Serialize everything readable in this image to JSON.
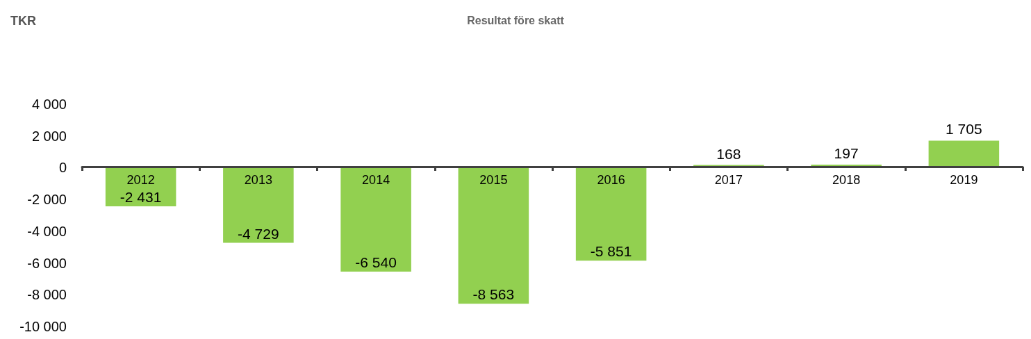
{
  "chart_data": {
    "type": "bar",
    "title": "Resultat före skatt",
    "annotations": [
      "TKR"
    ],
    "categories": [
      "2012",
      "2013",
      "2014",
      "2015",
      "2016",
      "2017",
      "2018",
      "2019"
    ],
    "values": [
      -2431,
      -4729,
      -6540,
      -8563,
      -5851,
      168,
      197,
      1705
    ],
    "value_labels": [
      "-2 431",
      "-4 729",
      "-6 540",
      "-8 563",
      "-5 851",
      "168",
      "197",
      "1 705"
    ],
    "color": "#92d050",
    "ylim": [
      -10000,
      4000
    ],
    "yticks": [
      {
        "value": -10000,
        "label": "-10 000"
      },
      {
        "value": -8000,
        "label": "-8 000"
      },
      {
        "value": -6000,
        "label": "-6 000"
      },
      {
        "value": -4000,
        "label": "-4 000"
      },
      {
        "value": -2000,
        "label": "-2 000"
      },
      {
        "value": 0,
        "label": "0"
      },
      {
        "value": 2000,
        "label": "2 000"
      },
      {
        "value": 4000,
        "label": "4 000"
      }
    ]
  }
}
